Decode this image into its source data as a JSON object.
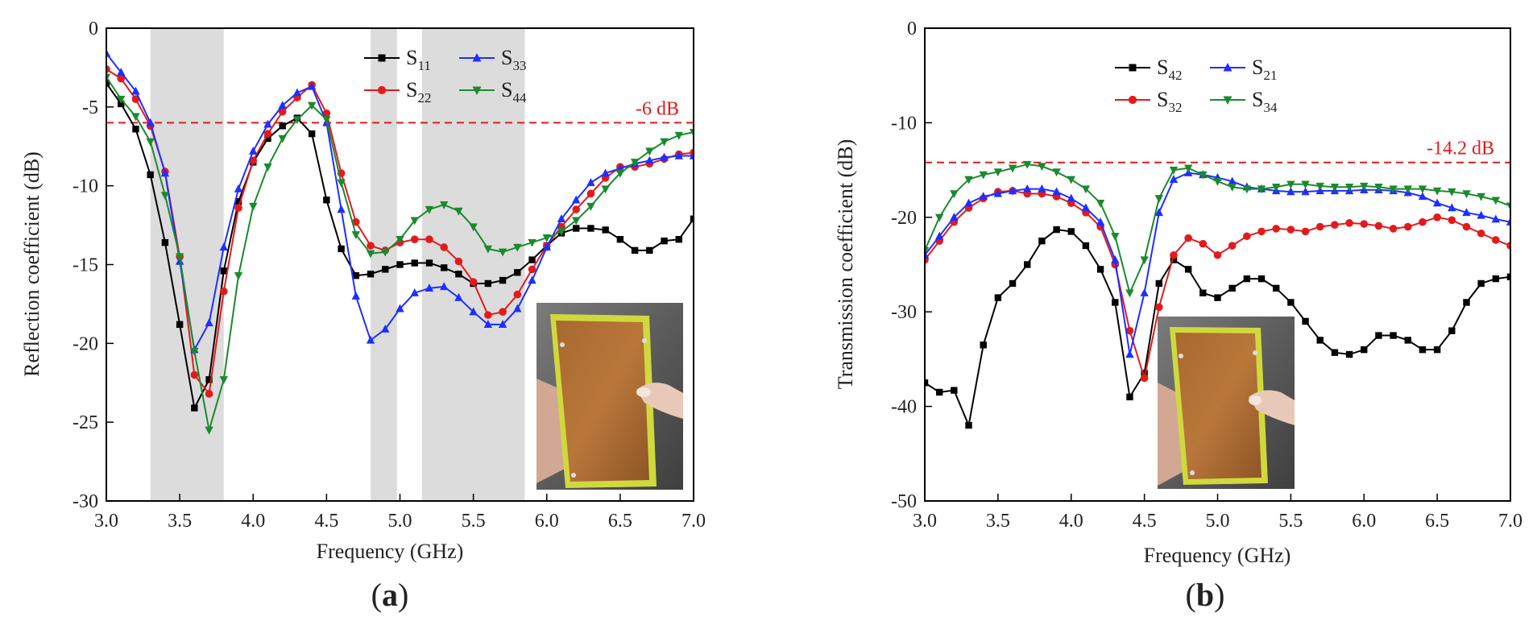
{
  "chart_data": [
    {
      "type": "line",
      "panel_label": "a",
      "xlabel": "Frequency (GHz)",
      "ylabel": "Reflection coefficient (dB)",
      "xlim": [
        3.0,
        7.0
      ],
      "ylim": [
        -30,
        0
      ],
      "x_ticks": [
        "3.0",
        "3.5",
        "4.0",
        "4.5",
        "5.0",
        "5.5",
        "6.0",
        "6.5",
        "7.0"
      ],
      "y_ticks": [
        "0",
        "-5",
        "-10",
        "-15",
        "-20",
        "-25",
        "-30"
      ],
      "reference_line": {
        "value": -6,
        "label": "-6 dB",
        "color": "#e31a1c"
      },
      "shaded_bands": [
        [
          3.3,
          3.8
        ],
        [
          4.8,
          4.98
        ],
        [
          5.15,
          5.85
        ]
      ],
      "x": [
        3.0,
        3.1,
        3.2,
        3.3,
        3.4,
        3.5,
        3.6,
        3.7,
        3.8,
        3.9,
        4.0,
        4.1,
        4.2,
        4.3,
        4.4,
        4.5,
        4.6,
        4.7,
        4.8,
        4.9,
        5.0,
        5.1,
        5.2,
        5.3,
        5.4,
        5.5,
        5.6,
        5.7,
        5.8,
        5.9,
        6.0,
        6.1,
        6.2,
        6.3,
        6.4,
        6.5,
        6.6,
        6.7,
        6.8,
        6.9,
        7.0
      ],
      "series": [
        {
          "name": "S11",
          "base": "S",
          "sub": "11",
          "color": "#000000",
          "marker": "square",
          "values": [
            -3.5,
            -4.8,
            -6.4,
            -9.3,
            -13.6,
            -18.8,
            -24.1,
            -22.3,
            -15.4,
            -11.0,
            -8.5,
            -7.0,
            -6.2,
            -5.7,
            -6.7,
            -10.9,
            -14.0,
            -15.7,
            -15.6,
            -15.3,
            -15.0,
            -14.9,
            -14.9,
            -15.2,
            -15.6,
            -16.2,
            -16.2,
            -16.0,
            -15.5,
            -14.7,
            -13.8,
            -13.0,
            -12.7,
            -12.7,
            -12.8,
            -13.4,
            -14.1,
            -14.1,
            -13.5,
            -13.4,
            -12.1
          ]
        },
        {
          "name": "S22",
          "base": "S",
          "sub": "22",
          "color": "#e31a1c",
          "marker": "circle",
          "values": [
            -2.6,
            -3.2,
            -4.5,
            -6.2,
            -9.1,
            -14.5,
            -22.0,
            -23.2,
            -16.7,
            -11.4,
            -8.4,
            -6.7,
            -5.3,
            -4.4,
            -3.6,
            -5.4,
            -9.2,
            -12.3,
            -13.8,
            -14.1,
            -13.6,
            -13.4,
            -13.4,
            -13.9,
            -14.8,
            -16.1,
            -18.2,
            -18.0,
            -16.9,
            -15.3,
            -13.8,
            -12.6,
            -11.5,
            -10.5,
            -9.5,
            -8.8,
            -8.8,
            -8.6,
            -8.3,
            -8.0,
            -7.9
          ]
        },
        {
          "name": "S33",
          "base": "S",
          "sub": "33",
          "color": "#1f2fff",
          "marker": "triangle-up",
          "values": [
            -1.6,
            -2.8,
            -4.0,
            -6.0,
            -9.2,
            -14.8,
            -20.4,
            -18.7,
            -13.9,
            -10.2,
            -7.8,
            -6.1,
            -4.9,
            -4.1,
            -3.7,
            -6.0,
            -11.5,
            -17.0,
            -19.8,
            -19.1,
            -17.8,
            -16.8,
            -16.5,
            -16.4,
            -17.1,
            -18.0,
            -18.8,
            -18.8,
            -17.8,
            -16.0,
            -13.9,
            -12.1,
            -10.9,
            -9.8,
            -9.2,
            -8.9,
            -8.6,
            -8.4,
            -8.2,
            -8.1,
            -8.1
          ]
        },
        {
          "name": "S44",
          "base": "S",
          "sub": "44",
          "color": "#1a8a2e",
          "marker": "triangle-down",
          "values": [
            -3.1,
            -4.5,
            -5.6,
            -7.2,
            -10.6,
            -14.5,
            -20.5,
            -25.5,
            -22.3,
            -15.7,
            -11.3,
            -8.8,
            -7.0,
            -5.8,
            -4.9,
            -5.8,
            -9.8,
            -13.1,
            -14.3,
            -14.2,
            -13.4,
            -12.2,
            -11.5,
            -11.2,
            -11.6,
            -12.6,
            -14.0,
            -14.2,
            -13.9,
            -13.6,
            -13.3,
            -12.9,
            -12.2,
            -11.3,
            -10.2,
            -9.2,
            -8.5,
            -7.8,
            -7.2,
            -6.8,
            -6.6
          ]
        }
      ]
    },
    {
      "type": "line",
      "panel_label": "b",
      "xlabel": "Frequency (GHz)",
      "ylabel": "Transmission coefficient (dB)",
      "xlim": [
        3.0,
        7.0
      ],
      "ylim": [
        -50,
        0
      ],
      "x_ticks": [
        "3.0",
        "3.5",
        "4.0",
        "4.5",
        "5.0",
        "5.5",
        "6.0",
        "6.5",
        "7.0"
      ],
      "y_ticks": [
        "0",
        "-10",
        "-20",
        "-30",
        "-40",
        "-50"
      ],
      "reference_line": {
        "value": -14.2,
        "label": "-14.2 dB",
        "color": "#e31a1c"
      },
      "x": [
        3.0,
        3.1,
        3.2,
        3.3,
        3.4,
        3.5,
        3.6,
        3.7,
        3.8,
        3.9,
        4.0,
        4.1,
        4.2,
        4.3,
        4.4,
        4.5,
        4.6,
        4.7,
        4.8,
        4.9,
        5.0,
        5.1,
        5.2,
        5.3,
        5.4,
        5.5,
        5.6,
        5.7,
        5.8,
        5.9,
        6.0,
        6.1,
        6.2,
        6.3,
        6.4,
        6.5,
        6.6,
        6.7,
        6.8,
        6.9,
        7.0
      ],
      "series": [
        {
          "name": "S42",
          "base": "S",
          "sub": "42",
          "color": "#000000",
          "marker": "square",
          "values": [
            -37.5,
            -38.5,
            -38.3,
            -42.0,
            -33.5,
            -28.5,
            -27.0,
            -25.0,
            -22.5,
            -21.3,
            -21.5,
            -23.0,
            -25.5,
            -29.0,
            -39.0,
            -36.5,
            -27.0,
            -24.5,
            -25.5,
            -28.0,
            -28.5,
            -27.5,
            -26.5,
            -26.5,
            -27.5,
            -29.0,
            -31.0,
            -33.0,
            -34.3,
            -34.5,
            -34.0,
            -32.5,
            -32.5,
            -33.0,
            -34.0,
            -34.0,
            -32.0,
            -29.0,
            -27.0,
            -26.5,
            -26.3
          ]
        },
        {
          "name": "S32",
          "base": "S",
          "sub": "32",
          "color": "#e31a1c",
          "marker": "circle",
          "values": [
            -24.5,
            -22.5,
            -20.5,
            -19.0,
            -18.0,
            -17.3,
            -17.2,
            -17.5,
            -17.5,
            -17.8,
            -18.5,
            -19.5,
            -21.0,
            -25.0,
            -32.0,
            -37.0,
            -29.5,
            -24.0,
            -22.2,
            -22.8,
            -24.0,
            -23.0,
            -22.0,
            -21.5,
            -21.2,
            -21.3,
            -21.5,
            -21.0,
            -20.8,
            -20.6,
            -20.7,
            -20.9,
            -21.2,
            -21.0,
            -20.5,
            -20.0,
            -20.3,
            -21.0,
            -21.7,
            -22.4,
            -23.0
          ]
        },
        {
          "name": "S21",
          "base": "S",
          "sub": "21",
          "color": "#1f2fff",
          "marker": "triangle-up",
          "values": [
            -24.0,
            -22.0,
            -20.0,
            -18.5,
            -17.8,
            -17.5,
            -17.2,
            -17.0,
            -17.0,
            -17.3,
            -18.0,
            -19.0,
            -20.5,
            -24.5,
            -34.5,
            -28.0,
            -19.5,
            -16.0,
            -15.3,
            -15.5,
            -15.8,
            -16.2,
            -16.8,
            -17.0,
            -17.2,
            -17.3,
            -17.3,
            -17.2,
            -17.2,
            -17.2,
            -17.1,
            -17.1,
            -17.2,
            -17.4,
            -17.8,
            -18.5,
            -19.0,
            -19.5,
            -19.8,
            -20.2,
            -20.5
          ]
        },
        {
          "name": "S34",
          "base": "S",
          "sub": "34",
          "color": "#1a8a2e",
          "marker": "triangle-down",
          "values": [
            -23.5,
            -20.0,
            -17.5,
            -16.0,
            -15.5,
            -15.2,
            -14.8,
            -14.4,
            -14.6,
            -15.2,
            -16.0,
            -17.0,
            -18.5,
            -22.0,
            -28.0,
            -24.5,
            -18.0,
            -15.0,
            -14.8,
            -15.5,
            -16.2,
            -16.8,
            -17.0,
            -17.0,
            -16.8,
            -16.5,
            -16.5,
            -16.7,
            -16.8,
            -16.8,
            -16.7,
            -16.8,
            -17.0,
            -17.0,
            -17.0,
            -17.2,
            -17.3,
            -17.5,
            -17.8,
            -18.2,
            -18.8
          ]
        }
      ]
    }
  ]
}
